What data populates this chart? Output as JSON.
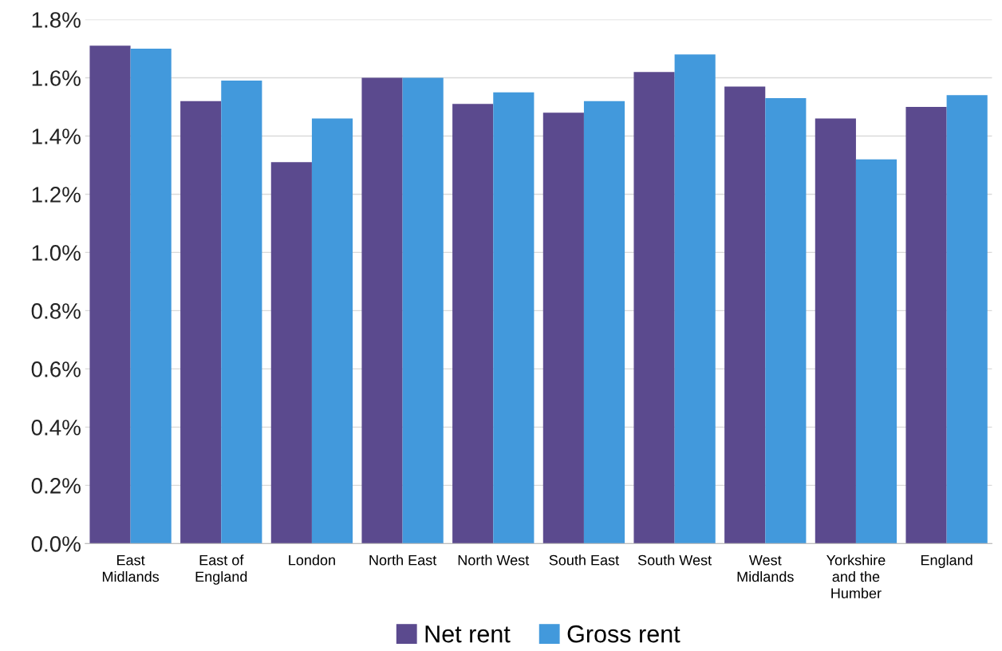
{
  "chart_data": {
    "type": "bar",
    "categories": [
      "East\nMidlands",
      "East of\nEngland",
      "London",
      "North East",
      "North West",
      "South East",
      "South West",
      "West\nMidlands",
      "Yorkshire\nand the\nHumber",
      "England"
    ],
    "series": [
      {
        "name": "Net rent",
        "color": "#5b4a8e",
        "values": [
          1.71,
          1.52,
          1.31,
          1.6,
          1.51,
          1.48,
          1.62,
          1.57,
          1.46,
          1.5
        ]
      },
      {
        "name": "Gross rent",
        "color": "#4299dc",
        "values": [
          1.7,
          1.59,
          1.46,
          1.6,
          1.55,
          1.52,
          1.68,
          1.53,
          1.32,
          1.54
        ]
      }
    ],
    "ylim": [
      0,
      1.8
    ],
    "yticks": [
      {
        "value": 0,
        "label": "0.0%"
      },
      {
        "value": 0.2,
        "label": "0.2%"
      },
      {
        "value": 0.4,
        "label": "0.4%"
      },
      {
        "value": 0.6,
        "label": "0.6%"
      },
      {
        "value": 0.8,
        "label": "0.8%"
      },
      {
        "value": 1.0,
        "label": "1.0%"
      },
      {
        "value": 1.2,
        "label": "1.2%"
      },
      {
        "value": 1.4,
        "label": "1.4%"
      },
      {
        "value": 1.6,
        "label": "1.6%"
      },
      {
        "value": 1.8,
        "label": "1.8%"
      }
    ],
    "grid": "y",
    "legend": "bottom"
  }
}
